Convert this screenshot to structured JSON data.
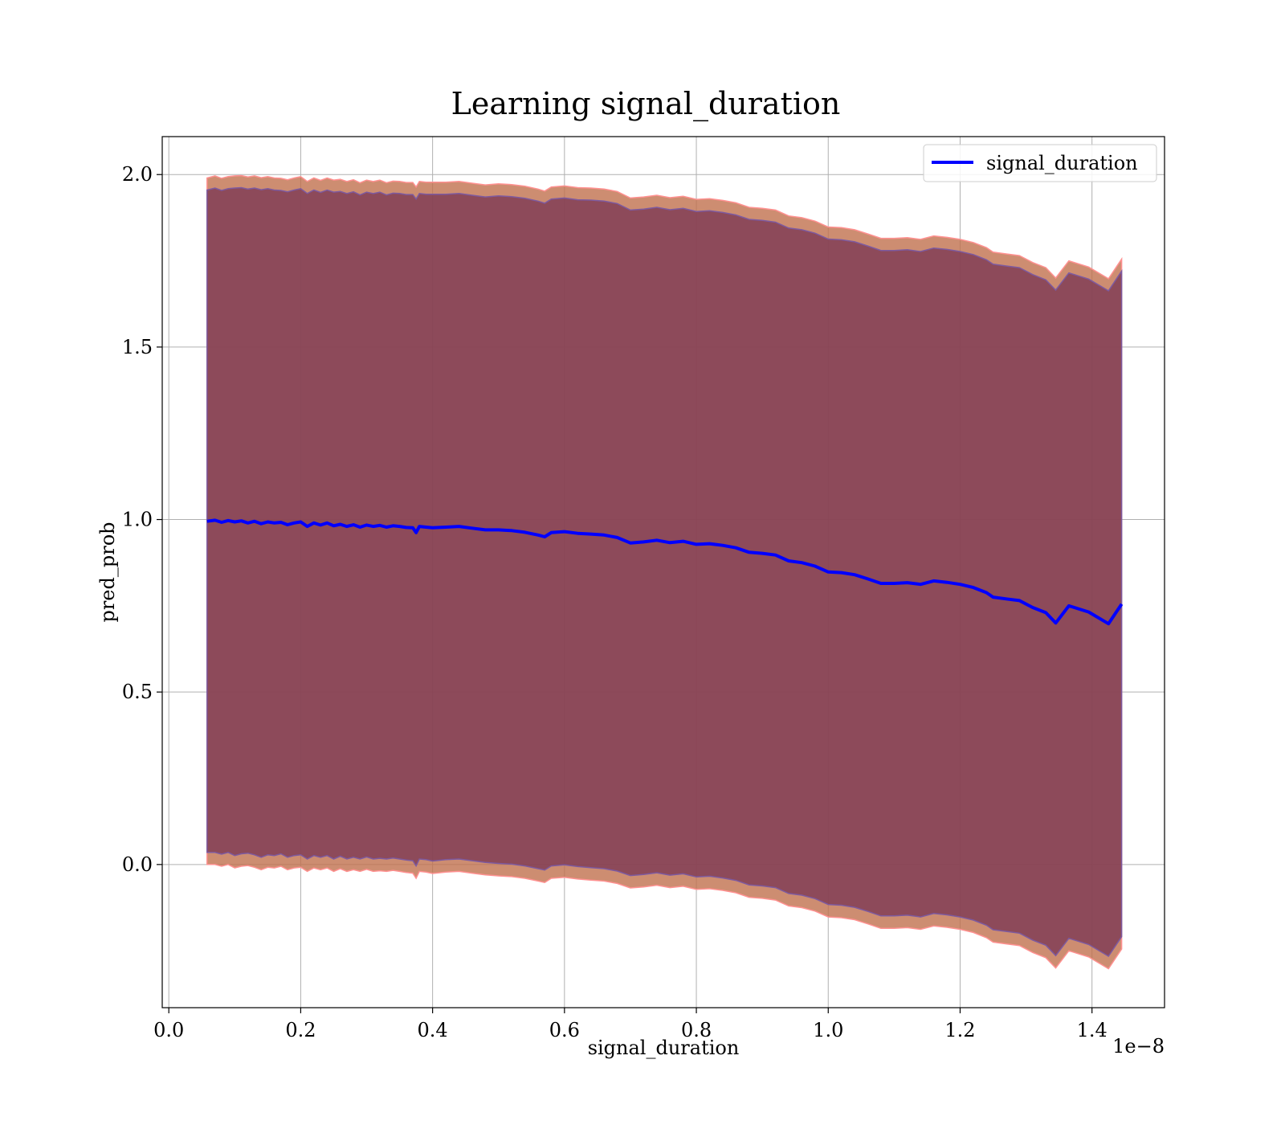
{
  "chart_data": {
    "type": "line",
    "title": "Learning signal_duration",
    "xlabel": "signal_duration",
    "ylabel": "pred_prob",
    "x_offset_label": "1e−8",
    "x_scale_multiplier": 1e-08,
    "xlim": [
      -0.01,
      1.51
    ],
    "ylim": [
      -0.415,
      2.11
    ],
    "x_ticks": [
      0.0,
      0.2,
      0.4,
      0.6,
      0.8,
      1.0,
      1.2,
      1.4
    ],
    "x_tick_labels": [
      "0.0",
      "0.2",
      "0.4",
      "0.6",
      "0.8",
      "1.0",
      "1.2",
      "1.4"
    ],
    "y_ticks": [
      0.0,
      0.5,
      1.0,
      1.5,
      2.0
    ],
    "y_tick_labels": [
      "0.0",
      "0.5",
      "1.0",
      "1.5",
      "2.0"
    ],
    "grid": true,
    "legend_position": "upper right",
    "series": [
      {
        "name": "signal_duration",
        "color": "#0000ff",
        "x": [
          0.058,
          0.07,
          0.08,
          0.09,
          0.1,
          0.11,
          0.12,
          0.13,
          0.14,
          0.15,
          0.16,
          0.17,
          0.18,
          0.19,
          0.2,
          0.21,
          0.22,
          0.23,
          0.24,
          0.25,
          0.26,
          0.27,
          0.28,
          0.29,
          0.3,
          0.31,
          0.32,
          0.33,
          0.34,
          0.35,
          0.36,
          0.37,
          0.375,
          0.38,
          0.39,
          0.4,
          0.42,
          0.44,
          0.46,
          0.48,
          0.5,
          0.52,
          0.54,
          0.56,
          0.57,
          0.58,
          0.6,
          0.62,
          0.64,
          0.66,
          0.68,
          0.7,
          0.72,
          0.74,
          0.76,
          0.78,
          0.8,
          0.82,
          0.84,
          0.86,
          0.88,
          0.9,
          0.92,
          0.94,
          0.96,
          0.98,
          1.0,
          1.02,
          1.04,
          1.06,
          1.08,
          1.1,
          1.12,
          1.14,
          1.16,
          1.18,
          1.2,
          1.22,
          1.24,
          1.25,
          1.27,
          1.29,
          1.31,
          1.33,
          1.345,
          1.365,
          1.395,
          1.425,
          1.445
        ],
        "y": [
          0.995,
          0.998,
          0.992,
          0.997,
          0.993,
          0.996,
          0.99,
          0.995,
          0.988,
          0.993,
          0.99,
          0.992,
          0.985,
          0.99,
          0.993,
          0.98,
          0.99,
          0.984,
          0.99,
          0.982,
          0.986,
          0.98,
          0.985,
          0.978,
          0.984,
          0.98,
          0.983,
          0.978,
          0.982,
          0.98,
          0.977,
          0.976,
          0.962,
          0.98,
          0.978,
          0.976,
          0.978,
          0.98,
          0.975,
          0.97,
          0.97,
          0.968,
          0.963,
          0.955,
          0.95,
          0.962,
          0.965,
          0.96,
          0.958,
          0.955,
          0.948,
          0.932,
          0.935,
          0.94,
          0.933,
          0.937,
          0.928,
          0.93,
          0.925,
          0.918,
          0.905,
          0.902,
          0.897,
          0.88,
          0.875,
          0.865,
          0.848,
          0.846,
          0.84,
          0.828,
          0.815,
          0.815,
          0.817,
          0.812,
          0.822,
          0.818,
          0.812,
          0.803,
          0.788,
          0.775,
          0.77,
          0.765,
          0.745,
          0.73,
          0.7,
          0.75,
          0.732,
          0.698,
          0.755
        ]
      }
    ],
    "bands": [
      {
        "name": "outer",
        "fill": "#c0704e",
        "edge": "#ff9090",
        "lower": [
          0.0,
          0.0,
          -0.005,
          0.0,
          -0.01,
          -0.005,
          -0.003,
          -0.008,
          -0.015,
          -0.008,
          -0.01,
          -0.005,
          -0.015,
          -0.01,
          -0.008,
          -0.02,
          -0.01,
          -0.015,
          -0.01,
          -0.02,
          -0.012,
          -0.02,
          -0.015,
          -0.02,
          -0.014,
          -0.02,
          -0.018,
          -0.02,
          -0.017,
          -0.02,
          -0.023,
          -0.025,
          -0.04,
          -0.02,
          -0.022,
          -0.026,
          -0.022,
          -0.02,
          -0.025,
          -0.03,
          -0.033,
          -0.035,
          -0.04,
          -0.048,
          -0.052,
          -0.04,
          -0.037,
          -0.042,
          -0.045,
          -0.048,
          -0.055,
          -0.068,
          -0.065,
          -0.06,
          -0.067,
          -0.063,
          -0.072,
          -0.07,
          -0.075,
          -0.082,
          -0.095,
          -0.098,
          -0.103,
          -0.12,
          -0.125,
          -0.135,
          -0.152,
          -0.154,
          -0.16,
          -0.172,
          -0.185,
          -0.185,
          -0.183,
          -0.188,
          -0.178,
          -0.182,
          -0.188,
          -0.197,
          -0.212,
          -0.225,
          -0.23,
          -0.235,
          -0.255,
          -0.27,
          -0.3,
          -0.25,
          -0.268,
          -0.302,
          -0.245
        ],
        "upper": [
          1.99,
          1.996,
          1.989,
          1.994,
          1.996,
          1.997,
          1.993,
          1.996,
          1.991,
          1.994,
          1.99,
          1.989,
          1.985,
          1.99,
          1.994,
          1.98,
          1.99,
          1.983,
          1.99,
          1.984,
          1.986,
          1.98,
          1.985,
          1.976,
          1.984,
          1.98,
          1.984,
          1.976,
          1.981,
          1.98,
          1.977,
          1.977,
          1.964,
          1.98,
          1.978,
          1.978,
          1.978,
          1.98,
          1.975,
          1.97,
          1.973,
          1.971,
          1.966,
          1.958,
          1.952,
          1.964,
          1.967,
          1.962,
          1.961,
          1.958,
          1.951,
          1.932,
          1.935,
          1.94,
          1.933,
          1.937,
          1.928,
          1.93,
          1.925,
          1.918,
          1.905,
          1.902,
          1.897,
          1.88,
          1.875,
          1.865,
          1.848,
          1.846,
          1.84,
          1.828,
          1.815,
          1.815,
          1.817,
          1.812,
          1.822,
          1.818,
          1.812,
          1.803,
          1.788,
          1.775,
          1.77,
          1.765,
          1.745,
          1.73,
          1.7,
          1.75,
          1.732,
          1.698,
          1.755
        ]
      },
      {
        "name": "inner",
        "fill": "#7d3a55",
        "edge": "#7d5aa0",
        "lower": [
          0.035,
          0.035,
          0.03,
          0.035,
          0.026,
          0.031,
          0.033,
          0.028,
          0.021,
          0.028,
          0.026,
          0.031,
          0.021,
          0.026,
          0.028,
          0.016,
          0.026,
          0.021,
          0.026,
          0.016,
          0.024,
          0.016,
          0.021,
          0.016,
          0.022,
          0.016,
          0.018,
          0.016,
          0.019,
          0.016,
          0.013,
          0.011,
          -0.004,
          0.016,
          0.014,
          0.01,
          0.014,
          0.016,
          0.011,
          0.006,
          0.003,
          0.001,
          -0.004,
          -0.012,
          -0.016,
          -0.004,
          -0.001,
          -0.006,
          -0.009,
          -0.012,
          -0.019,
          -0.032,
          -0.029,
          -0.024,
          -0.031,
          -0.027,
          -0.036,
          -0.034,
          -0.039,
          -0.046,
          -0.059,
          -0.062,
          -0.067,
          -0.084,
          -0.089,
          -0.099,
          -0.116,
          -0.118,
          -0.124,
          -0.136,
          -0.149,
          -0.149,
          -0.147,
          -0.152,
          -0.142,
          -0.146,
          -0.152,
          -0.161,
          -0.176,
          -0.189,
          -0.194,
          -0.199,
          -0.219,
          -0.234,
          -0.264,
          -0.214,
          -0.232,
          -0.266,
          -0.209
        ],
        "upper": [
          1.955,
          1.961,
          1.954,
          1.959,
          1.961,
          1.962,
          1.958,
          1.961,
          1.956,
          1.959,
          1.955,
          1.954,
          1.95,
          1.955,
          1.959,
          1.945,
          1.955,
          1.948,
          1.955,
          1.949,
          1.951,
          1.945,
          1.95,
          1.941,
          1.949,
          1.945,
          1.949,
          1.941,
          1.946,
          1.945,
          1.942,
          1.942,
          1.929,
          1.945,
          1.943,
          1.943,
          1.943,
          1.945,
          1.94,
          1.935,
          1.938,
          1.936,
          1.931,
          1.923,
          1.917,
          1.929,
          1.932,
          1.927,
          1.926,
          1.923,
          1.916,
          1.897,
          1.9,
          1.905,
          1.898,
          1.902,
          1.893,
          1.895,
          1.89,
          1.883,
          1.87,
          1.867,
          1.862,
          1.845,
          1.84,
          1.83,
          1.813,
          1.811,
          1.805,
          1.793,
          1.78,
          1.78,
          1.782,
          1.777,
          1.787,
          1.783,
          1.777,
          1.768,
          1.753,
          1.74,
          1.735,
          1.73,
          1.71,
          1.695,
          1.665,
          1.715,
          1.697,
          1.663,
          1.72
        ]
      }
    ]
  }
}
